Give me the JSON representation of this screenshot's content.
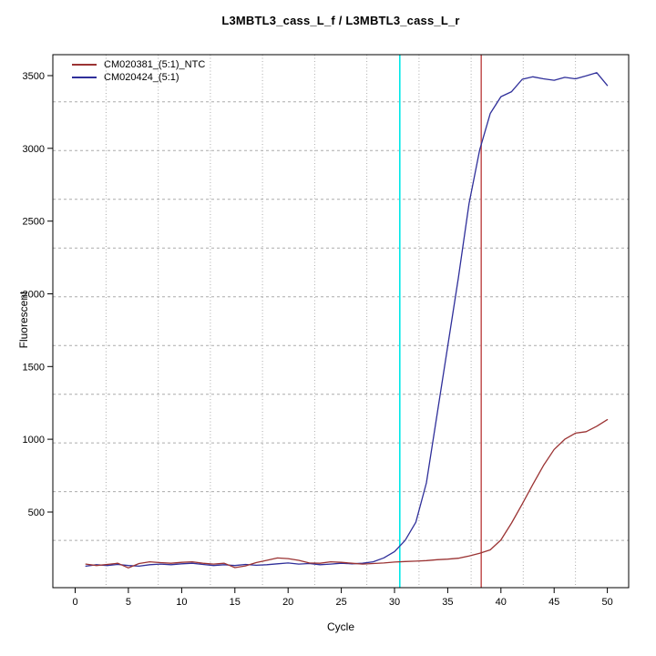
{
  "chart": {
    "title": "L3MBTL3_cass_L_f / L3MBTL3_cass_L_r",
    "xlabel": "Cycle",
    "ylabel": "Fluorescent"
  },
  "chart_data": {
    "type": "line",
    "title": "L3MBTL3_cass_L_f / L3MBTL3_cass_L_r",
    "xlabel": "Cycle",
    "ylabel": "Fluorescent",
    "grid": true,
    "legend_position": "top-left",
    "xlim": [
      -2.1,
      52.0
    ],
    "ylim": [
      -20,
      3644
    ],
    "x_ticks": [
      0,
      5,
      10,
      15,
      20,
      25,
      30,
      35,
      40,
      45,
      50
    ],
    "y_ticks": [
      500,
      1000,
      1500,
      2000,
      2500,
      3000,
      3500
    ],
    "grid_x": [
      2.9,
      7.8,
      12.7,
      17.6,
      22.5,
      27.4,
      32.3,
      37.2,
      42.1,
      47.0
    ],
    "grid_y": [
      305,
      640,
      975,
      1310,
      1645,
      1980,
      2315,
      2650,
      2985,
      3320
    ],
    "grid_color": "#ACACAC",
    "threshold_lines": [
      {
        "x": 30.5,
        "color": "#00E8E8"
      },
      {
        "x": 38.15,
        "color": "#C65B5B"
      }
    ],
    "x": [
      1,
      2,
      3,
      4,
      5,
      6,
      7,
      8,
      9,
      10,
      11,
      12,
      13,
      14,
      15,
      16,
      17,
      18,
      19,
      20,
      21,
      22,
      23,
      24,
      25,
      26,
      27,
      28,
      29,
      30,
      31,
      32,
      33,
      34,
      35,
      36,
      37,
      38,
      39,
      40,
      41,
      42,
      43,
      44,
      45,
      46,
      47,
      48,
      49,
      50
    ],
    "series": [
      {
        "name": "CM020381_(5:1)_NTC",
        "color": "#9B3333",
        "values": [
          142,
          132,
          140,
          148,
          116,
          146,
          158,
          152,
          148,
          154,
          158,
          148,
          142,
          148,
          118,
          130,
          152,
          168,
          184,
          180,
          168,
          150,
          148,
          158,
          154,
          148,
          142,
          146,
          150,
          156,
          160,
          162,
          166,
          172,
          176,
          182,
          198,
          216,
          240,
          308,
          425,
          555,
          690,
          820,
          930,
          1000,
          1042,
          1052,
          1090,
          1135
        ]
      },
      {
        "name": "CM020424_(5:1)",
        "color": "#2F2F9A",
        "values": [
          128,
          138,
          132,
          140,
          132,
          128,
          138,
          142,
          138,
          144,
          148,
          140,
          132,
          138,
          132,
          140,
          134,
          138,
          144,
          150,
          142,
          146,
          138,
          142,
          148,
          144,
          148,
          158,
          185,
          228,
          305,
          430,
          700,
          1170,
          1640,
          2110,
          2620,
          2990,
          3240,
          3355,
          3390,
          3475,
          3492,
          3478,
          3468,
          3488,
          3478,
          3498,
          3520,
          3432
        ]
      }
    ]
  }
}
